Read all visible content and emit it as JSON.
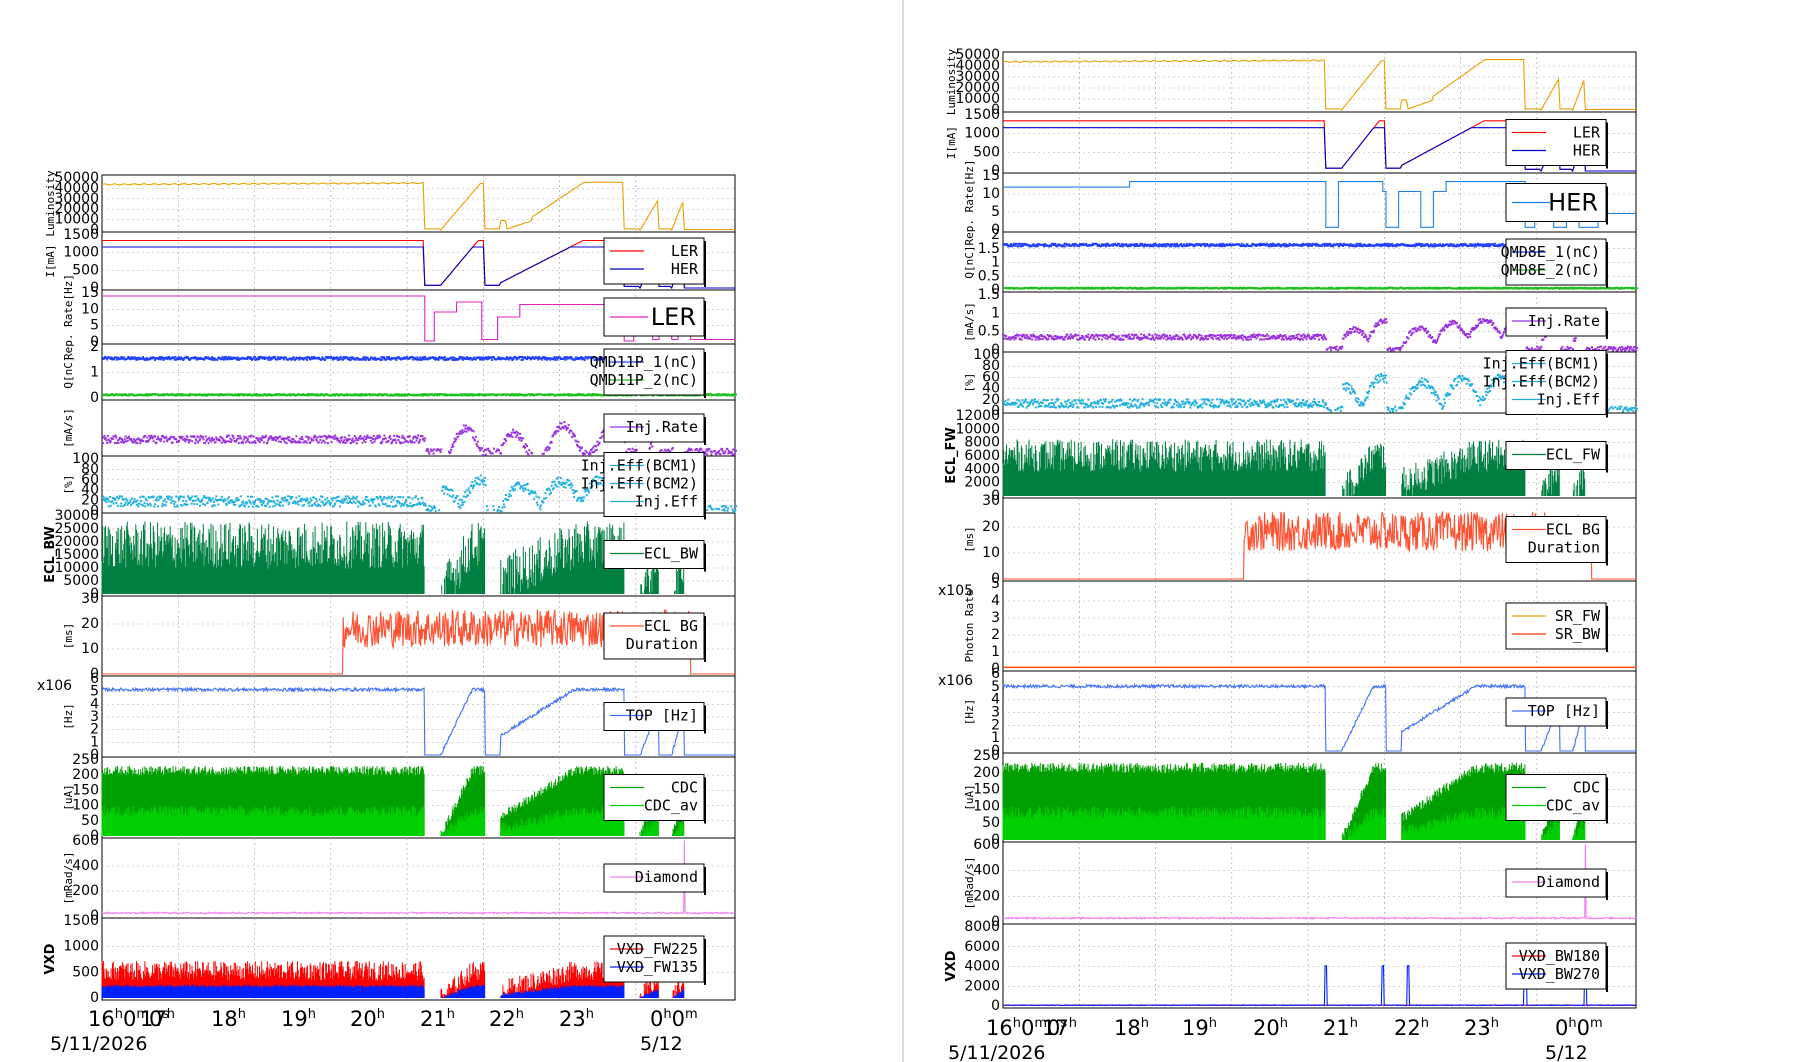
{
  "chart_data": [
    {
      "type": "line",
      "name": "left-strip-chart",
      "x_axis": {
        "time_labels": [
          "16h0m0s",
          "17h",
          "18h",
          "19h",
          "20h",
          "21h",
          "22h",
          "23h",
          "0h0m"
        ],
        "date_start": "5/11/2026",
        "date_end": "5/12"
      },
      "panels": [
        {
          "id": "luminosity",
          "ylabel": "Luminosity",
          "ticks": [
            "50000",
            "40000",
            "30000",
            "20000",
            "10000",
            "0"
          ],
          "ylim": [
            0,
            50000
          ],
          "series": [
            {
              "name": "Luminosity",
              "color": "#e8a000",
              "shape": "lumi"
            }
          ],
          "legend": []
        },
        {
          "id": "current",
          "ylabel": "I[mA]",
          "ticks": [
            "1500",
            "1000",
            "500",
            "0"
          ],
          "ylim": [
            0,
            1700
          ],
          "series": [
            {
              "name": "LER",
              "color": "#ff0000",
              "shape": "ler"
            },
            {
              "name": "HER",
              "color": "#0000cc",
              "shape": "her"
            }
          ],
          "legend": [
            "LER",
            "HER"
          ]
        },
        {
          "id": "reprate",
          "ylabel": "Rep. Rate[Hz]",
          "ticks": [
            "15",
            "10",
            "5",
            "0"
          ],
          "ylim": [
            0,
            17
          ],
          "series": [
            {
              "name": "LER",
              "color": "#e020c0",
              "shape": "rep"
            }
          ],
          "legend": [],
          "big_legend": "LER"
        },
        {
          "id": "charge",
          "ylabel": "Q[nC]",
          "ticks": [
            "2",
            "1",
            "0"
          ],
          "ylim": [
            0,
            2.5
          ],
          "series": [
            {
              "name": "QMD11P_1(nC)",
              "color": "#2040ff",
              "shape": "q1"
            },
            {
              "name": "QMD11P_2(nC)",
              "color": "#20c020",
              "shape": "q2"
            }
          ],
          "legend": [
            "QMD11P_1(nC)",
            "QMD11P_2(nC)"
          ]
        },
        {
          "id": "injrate",
          "ylabel": "[mA/s]",
          "ticks": [],
          "ylim": [
            0,
            10
          ],
          "series": [
            {
              "name": "Inj.Rate",
              "color": "#9a30e0",
              "shape": "injrate"
            }
          ],
          "legend": [
            "Inj.Rate"
          ]
        },
        {
          "id": "injeff",
          "ylabel": "[%]",
          "ticks": [
            "100",
            "80",
            "60",
            "40",
            "20",
            "0"
          ],
          "ylim": [
            0,
            100
          ],
          "series": [
            {
              "name": "Inj.Eff",
              "color": "#20b0e0",
              "shape": "injeff"
            }
          ],
          "legend": [
            "Inj.Eff(BCM1)",
            "Inj.Eff(BCM2)",
            "Inj.Eff"
          ]
        },
        {
          "id": "ecl",
          "ylabel": "ECL_BW",
          "ticks": [
            "30000",
            "25000",
            "20000",
            "15000",
            "10000",
            "5000",
            "0"
          ],
          "ylim": [
            0,
            30000
          ],
          "series": [
            {
              "name": "ECL_BW",
              "color": "#008040",
              "shape": "ecl"
            }
          ],
          "legend": [
            "ECL_BW"
          ]
        },
        {
          "id": "eclbg",
          "ylabel": "[ms]",
          "ticks": [
            "30",
            "20",
            "10",
            "0"
          ],
          "ylim": [
            0,
            38
          ],
          "series": [
            {
              "name": "ECL BG Duration",
              "color": "#ff5030",
              "shape": "eclbg_left"
            }
          ],
          "legend": [
            "ECL BG",
            "Duration"
          ]
        },
        {
          "id": "top",
          "ylabel": "[Hz]",
          "ticks": [
            "6",
            "5",
            "4",
            "3",
            "2",
            "1",
            "0"
          ],
          "ylim": [
            0,
            6.3
          ],
          "exponent": "x10^6",
          "series": [
            {
              "name": "TOP [Hz]",
              "color": "#4070ff",
              "shape": "top"
            }
          ],
          "legend": [
            "TOP [Hz]"
          ]
        },
        {
          "id": "cdc",
          "ylabel": "[uA]",
          "ticks": [
            "250",
            "200",
            "150",
            "100",
            "50",
            "0"
          ],
          "ylim": [
            0,
            260
          ],
          "series": [
            {
              "name": "CDC",
              "color": "#00a000",
              "shape": "cdc"
            },
            {
              "name": "CDC_av",
              "color": "#00d000",
              "shape": "cdcav"
            }
          ],
          "legend": [
            "CDC",
            "CDC_av"
          ]
        },
        {
          "id": "diamond",
          "ylabel": "[mRad/s]",
          "ticks": [
            "600",
            "400",
            "200",
            "0"
          ],
          "ylim": [
            0,
            700
          ],
          "series": [
            {
              "name": "Diamond",
              "color": "#f080f0",
              "shape": "diamond"
            }
          ],
          "legend": [
            "Diamond"
          ]
        },
        {
          "id": "vxd",
          "ylabel": "VXD",
          "ticks": [
            "1500",
            "1000",
            "500",
            "0"
          ],
          "ylim": [
            0,
            1550
          ],
          "series": [
            {
              "name": "VXD_FW135",
              "color": "#ff0000",
              "shape": "vxdred"
            },
            {
              "name": "VXD_FW225",
              "color": "#0020ff",
              "shape": "vxdblue"
            }
          ],
          "legend": [
            "VXD_FW225",
            "VXD_FW135"
          ]
        }
      ]
    },
    {
      "type": "line",
      "name": "right-strip-chart",
      "x_axis": {
        "time_labels": [
          "16h0m0s",
          "17h",
          "18h",
          "19h",
          "20h",
          "21h",
          "22h",
          "23h",
          "0h0m"
        ],
        "date_start": "5/11/2026",
        "date_end": "5/12"
      },
      "panels": [
        {
          "id": "luminosity",
          "ylabel": "Luminosity",
          "ticks": [
            "50000",
            "40000",
            "30000",
            "20000",
            "10000",
            "0"
          ],
          "ylim": [
            0,
            50000
          ],
          "series": [
            {
              "name": "Luminosity",
              "color": "#e8a000",
              "shape": "lumi"
            }
          ],
          "legend": []
        },
        {
          "id": "current",
          "ylabel": "I[mA]",
          "ticks": [
            "1500",
            "1000",
            "500",
            "0"
          ],
          "ylim": [
            0,
            1700
          ],
          "series": [
            {
              "name": "LER",
              "color": "#ff0000",
              "shape": "ler"
            },
            {
              "name": "HER",
              "color": "#0000cc",
              "shape": "her"
            }
          ],
          "legend": [
            "LER",
            "HER"
          ]
        },
        {
          "id": "reprate",
          "ylabel": "Rep. Rate[Hz]",
          "ticks": [
            "15",
            "10",
            "5",
            "0"
          ],
          "ylim": [
            0,
            17
          ],
          "series": [
            {
              "name": "HER",
              "color": "#2080e0",
              "shape": "rep_r"
            }
          ],
          "legend": [],
          "big_legend": "HER"
        },
        {
          "id": "charge",
          "ylabel": "Q[nC]",
          "ticks": [
            "2",
            "1.5",
            "1",
            "0.5",
            "0"
          ],
          "ylim": [
            0,
            2.2
          ],
          "series": [
            {
              "name": "QMD8E_1(nC)",
              "color": "#2040ff",
              "shape": "q1r"
            },
            {
              "name": "QMD8E_2(nC)",
              "color": "#20c020",
              "shape": "q2r"
            }
          ],
          "legend": [
            "QMD8E_1(nC)",
            "QMD8E_2(nC)"
          ]
        },
        {
          "id": "injrate",
          "ylabel": "[mA/s]",
          "ticks": [
            "1.5",
            "1",
            "0.5",
            "0"
          ],
          "ylim": [
            0,
            1.8
          ],
          "series": [
            {
              "name": "Inj.Rate",
              "color": "#9a30e0",
              "shape": "injrate_r"
            }
          ],
          "legend": [
            "Inj.Rate"
          ]
        },
        {
          "id": "injeff",
          "ylabel": "[%]",
          "ticks": [
            "100",
            "80",
            "60",
            "40",
            "20",
            "0"
          ],
          "ylim": [
            0,
            100
          ],
          "series": [
            {
              "name": "Inj.Eff",
              "color": "#20b0e0",
              "shape": "injeff_r"
            }
          ],
          "legend": [
            "Inj.Eff(BCM1)",
            "Inj.Eff(BCM2)",
            "Inj.Eff"
          ]
        },
        {
          "id": "ecl",
          "ylabel": "ECL_FW",
          "ticks": [
            "12000",
            "10000",
            "8000",
            "6000",
            "4000",
            "2000",
            "0"
          ],
          "ylim": [
            0,
            13000
          ],
          "series": [
            {
              "name": "ECL_FW",
              "color": "#008040",
              "shape": "ecl_r"
            }
          ],
          "legend": [
            "ECL_FW"
          ]
        },
        {
          "id": "eclbg",
          "ylabel": "[ms]",
          "ticks": [
            "30",
            "20",
            "10",
            "0"
          ],
          "ylim": [
            0,
            38
          ],
          "series": [
            {
              "name": "ECL BG Duration",
              "color": "#ff5030",
              "shape": "eclbg_right"
            }
          ],
          "legend": [
            "ECL BG",
            "Duration"
          ]
        },
        {
          "id": "photon",
          "ylabel": "Photon Rate",
          "ticks": [
            "5",
            "4",
            "3",
            "2",
            "1",
            "0"
          ],
          "ylim": [
            0,
            5.2
          ],
          "exponent": "x10^5",
          "series": [
            {
              "name": "SR_FW",
              "color": "#e8a000",
              "shape": "flat"
            },
            {
              "name": "SR_BW",
              "color": "#ff3000",
              "shape": "flat"
            }
          ],
          "legend": [
            "SR_FW",
            "SR_BW"
          ]
        },
        {
          "id": "top",
          "ylabel": "[Hz]",
          "ticks": [
            "6",
            "5",
            "4",
            "3",
            "2",
            "1",
            "0"
          ],
          "ylim": [
            0,
            6.3
          ],
          "exponent": "x10^6",
          "series": [
            {
              "name": "TOP [Hz]",
              "color": "#4070ff",
              "shape": "top_r"
            }
          ],
          "legend": [
            "TOP [Hz]"
          ]
        },
        {
          "id": "cdc",
          "ylabel": "[uA]",
          "ticks": [
            "250",
            "200",
            "150",
            "100",
            "50",
            "0"
          ],
          "ylim": [
            0,
            260
          ],
          "series": [
            {
              "name": "CDC",
              "color": "#00a000",
              "shape": "cdc_r"
            },
            {
              "name": "CDC_av",
              "color": "#00d000",
              "shape": "cdcav_r"
            }
          ],
          "legend": [
            "CDC",
            "CDC_av"
          ]
        },
        {
          "id": "diamond",
          "ylabel": "[mRad/s]",
          "ticks": [
            "600",
            "400",
            "200",
            "0"
          ],
          "ylim": [
            0,
            720
          ],
          "series": [
            {
              "name": "Diamond",
              "color": "#f080f0",
              "shape": "diamond_r"
            }
          ],
          "legend": [
            "Diamond"
          ]
        },
        {
          "id": "vxd",
          "ylabel": "VXD",
          "ticks": [
            "8000",
            "6000",
            "4000",
            "2000",
            "0"
          ],
          "ylim": [
            0,
            8000
          ],
          "series": [
            {
              "name": "VXD_BW180",
              "color": "#ff0000",
              "shape": "vxdbw"
            },
            {
              "name": "VXD_BW270",
              "color": "#0020ff",
              "shape": "vxdbw2"
            }
          ],
          "legend": [
            "VXD_BW180",
            "VXD_BW270"
          ]
        }
      ]
    }
  ]
}
